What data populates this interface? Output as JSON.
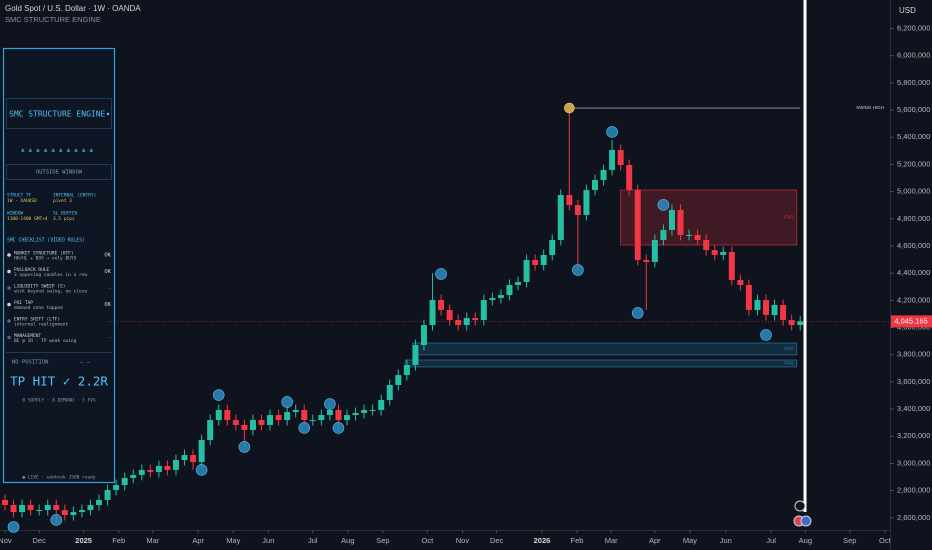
{
  "chart_data": {
    "type": "candlestick",
    "title": "Gold Spot / U.S. Dollar · 1W · OANDA",
    "subtitle": "SMC STRUCTURE ENGINE",
    "currency": "USD",
    "up_color": "#26bfa4",
    "down_color": "#f23645",
    "grid": false,
    "xlim": [
      -0.58,
      103.5
    ],
    "ylim": [
      2510000,
      6410000
    ],
    "xticks": [
      {
        "value": 0,
        "label": "Nov"
      },
      {
        "value": 4.0,
        "label": "Dec"
      },
      {
        "value": 9.2,
        "label": "2025"
      },
      {
        "value": 13.3,
        "label": "Feb"
      },
      {
        "value": 17.3,
        "label": "Mar"
      },
      {
        "value": 22.6,
        "label": "Apr"
      },
      {
        "value": 26.7,
        "label": "May"
      },
      {
        "value": 30.8,
        "label": "Jun"
      },
      {
        "value": 36.0,
        "label": "Jul"
      },
      {
        "value": 40.1,
        "label": "Aug"
      },
      {
        "value": 44.2,
        "label": "Sep"
      },
      {
        "value": 49.4,
        "label": "Oct"
      },
      {
        "value": 53.5,
        "label": "Nov"
      },
      {
        "value": 57.5,
        "label": "Dec"
      },
      {
        "value": 62.8,
        "label": "2026"
      },
      {
        "value": 66.9,
        "label": "Feb"
      },
      {
        "value": 70.9,
        "label": "Mar"
      },
      {
        "value": 76.0,
        "label": "Apr"
      },
      {
        "value": 80.1,
        "label": "May"
      },
      {
        "value": 84.3,
        "label": "Jun"
      },
      {
        "value": 89.6,
        "label": "Jul"
      },
      {
        "value": 93.6,
        "label": "Aug"
      },
      {
        "value": 98.8,
        "label": "Sep"
      },
      {
        "value": 102.9,
        "label": "Oct"
      }
    ],
    "yticks": [
      {
        "value": 2600000,
        "label": "2,600,000"
      },
      {
        "value": 2800000,
        "label": "2,800,000"
      },
      {
        "value": 3000000,
        "label": "3,000,000"
      },
      {
        "value": 3200000,
        "label": "3,200,000"
      },
      {
        "value": 3400000,
        "label": "3,400,000"
      },
      {
        "value": 3600000,
        "label": "3,600,000"
      },
      {
        "value": 3800000,
        "label": "3,800,000"
      },
      {
        "value": 4000000,
        "label": "4,000,000"
      },
      {
        "value": 4200000,
        "label": "4,200,000"
      },
      {
        "value": 4400000,
        "label": "4,400,000"
      },
      {
        "value": 4600000,
        "label": "4,600,000"
      },
      {
        "value": 4800000,
        "label": "4,800,000"
      },
      {
        "value": 5000000,
        "label": "5,000,000"
      },
      {
        "value": 5200000,
        "label": "5,200,000"
      },
      {
        "value": 5400000,
        "label": "5,400,000"
      },
      {
        "value": 5600000,
        "label": "5,600,000"
      },
      {
        "value": 5800000,
        "label": "5,800,000"
      },
      {
        "value": 6000000,
        "label": "6,000,000"
      },
      {
        "value": 6200000,
        "label": "6,200,000"
      }
    ],
    "open": [
      2731000,
      2694000,
      2642000,
      2694000,
      2657000,
      2657000,
      2694000,
      2657000,
      2620000,
      2642000,
      2657000,
      2694000,
      2731000,
      2804000,
      2841000,
      2893000,
      2915000,
      2952000,
      2937000,
      2981000,
      2952000,
      3025000,
      3062000,
      3010000,
      3172000,
      3319000,
      3393000,
      3319000,
      3283000,
      3246000,
      3319000,
      3283000,
      3356000,
      3319000,
      3378000,
      3393000,
      3319000,
      3319000,
      3356000,
      3393000,
      3319000,
      3356000,
      3371000,
      3393000,
      3393000,
      3467000,
      3577000,
      3650000,
      3724000,
      3871000,
      4018000,
      4202000,
      4129000,
      4055000,
      4018000,
      4070000,
      4055000,
      4202000,
      4217000,
      4239000,
      4313000,
      4335000,
      4497000,
      4460000,
      4534000,
      4644000,
      4975000,
      4901000,
      4828000,
      5012000,
      5085000,
      5159000,
      5306000,
      5196000,
      5012000,
      4497000,
      4482000,
      4644000,
      4718000,
      4865000,
      4681000,
      4681000,
      4644000,
      4570000,
      4534000,
      4556000,
      4350000,
      4313000,
      4129000,
      4202000,
      4092000,
      4166000,
      4055000,
      4018000
    ],
    "high": [
      2771000,
      2734000,
      2734000,
      2734000,
      2697000,
      2734000,
      2734000,
      2697000,
      2682000,
      2697000,
      2734000,
      2771000,
      2844000,
      2881000,
      2933000,
      2955000,
      2992000,
      2992000,
      3021000,
      3021000,
      3065000,
      3102000,
      3102000,
      3212000,
      3359000,
      3433000,
      3433000,
      3359000,
      3323000,
      3359000,
      3359000,
      3396000,
      3396000,
      3418000,
      3433000,
      3433000,
      3359000,
      3396000,
      3433000,
      3433000,
      3396000,
      3411000,
      3433000,
      3433000,
      3507000,
      3617000,
      3690000,
      3764000,
      3911000,
      4058000,
      4400000,
      4242000,
      4169000,
      4095000,
      4110000,
      4110000,
      4242000,
      4257000,
      4279000,
      4353000,
      4375000,
      4537000,
      4537000,
      4574000,
      4684000,
      5015000,
      5615000,
      4941000,
      5052000,
      5125000,
      5199000,
      5380000,
      5346000,
      5236000,
      5052000,
      4537000,
      4684000,
      4758000,
      4905000,
      4905000,
      4721000,
      4721000,
      4684000,
      4610000,
      4596000,
      4596000,
      4390000,
      4353000,
      4242000,
      4242000,
      4206000,
      4206000,
      4095000,
      4085000
    ],
    "low": [
      2654000,
      2602000,
      2602000,
      2617000,
      2617000,
      2617000,
      2560000,
      2580000,
      2580000,
      2602000,
      2617000,
      2654000,
      2691000,
      2764000,
      2801000,
      2853000,
      2875000,
      2897000,
      2897000,
      2912000,
      2912000,
      2985000,
      2952000,
      2970000,
      3132000,
      3279000,
      3279000,
      3243000,
      3120000,
      3206000,
      3243000,
      3243000,
      3279000,
      3279000,
      3338000,
      3279000,
      3279000,
      3279000,
      3316000,
      3246000,
      3279000,
      3316000,
      3331000,
      3353000,
      3353000,
      3427000,
      3537000,
      3610000,
      3684000,
      3831000,
      3978000,
      4089000,
      4015000,
      3978000,
      3978000,
      4015000,
      4015000,
      4162000,
      4177000,
      4199000,
      4273000,
      4295000,
      4420000,
      4420000,
      4494000,
      4604000,
      4861000,
      4424000,
      4788000,
      4972000,
      5045000,
      5119000,
      5156000,
      4972000,
      4457000,
      4129000,
      4442000,
      4604000,
      4678000,
      4641000,
      4641000,
      4604000,
      4530000,
      4494000,
      4494000,
      4310000,
      4273000,
      4089000,
      4089000,
      4052000,
      4052000,
      4015000,
      3978000,
      3978000
    ],
    "close": [
      2694000,
      2642000,
      2694000,
      2657000,
      2657000,
      2694000,
      2657000,
      2620000,
      2642000,
      2657000,
      2694000,
      2731000,
      2804000,
      2841000,
      2893000,
      2915000,
      2952000,
      2937000,
      2981000,
      2952000,
      3025000,
      3062000,
      3010000,
      3172000,
      3319000,
      3393000,
      3319000,
      3283000,
      3246000,
      3319000,
      3283000,
      3356000,
      3319000,
      3378000,
      3393000,
      3319000,
      3319000,
      3356000,
      3393000,
      3319000,
      3356000,
      3371000,
      3393000,
      3393000,
      3467000,
      3577000,
      3650000,
      3724000,
      3871000,
      4018000,
      4202000,
      4129000,
      4055000,
      4018000,
      4070000,
      4055000,
      4202000,
      4217000,
      4239000,
      4313000,
      4335000,
      4497000,
      4460000,
      4534000,
      4644000,
      4975000,
      4901000,
      4828000,
      5012000,
      5085000,
      5159000,
      5306000,
      5196000,
      5012000,
      4497000,
      4482000,
      4644000,
      4718000,
      4865000,
      4681000,
      4681000,
      4644000,
      4570000,
      4534000,
      4556000,
      4350000,
      4313000,
      4129000,
      4202000,
      4092000,
      4166000,
      4055000,
      4018000,
      4045165
    ],
    "price_tag": "4,045.165",
    "pivots": {
      "color": "#2a8cc0",
      "index": [
        1,
        6,
        23,
        25,
        28,
        33,
        35,
        38,
        39,
        51,
        67,
        71,
        74,
        77,
        89
      ],
      "price": [
        2532000,
        2584000,
        2952000,
        3503000,
        3121000,
        3452000,
        3261000,
        3437000,
        3261000,
        4394000,
        4423000,
        5439000,
        4107000,
        4902000,
        3945000
      ]
    },
    "swing_high": {
      "label": "SWING HIGH",
      "price": 5615000,
      "start": 66,
      "end": 93,
      "color": "#c9a24a"
    },
    "zones": [
      {
        "label": "FVG",
        "top": 5012000,
        "bottom": 4607000,
        "start": 72,
        "end": 92.6,
        "color": "#f23645"
      },
      {
        "label": "FVG",
        "top": 3886000,
        "bottom": 3798000,
        "start": 47.7,
        "end": 92.6,
        "color": "#2a8cc0"
      },
      {
        "label": "FVG",
        "top": 3761000,
        "bottom": 3710000,
        "start": 46.8,
        "end": 92.6,
        "color": "#2a8cc0"
      }
    ]
  },
  "panel": {
    "title": "SMC STRUCTURE ENGINE",
    "window_status": "OUTSIDE WINDOW",
    "info": [
      {
        "label": "STRUCT TF",
        "value": "1W · XAUUSD"
      },
      {
        "label": "INTERNAL (ENTRY)",
        "value": "pivot 3"
      },
      {
        "label": "WINDOW",
        "value": "1100-1400 GMT+4"
      },
      {
        "label": "SL BUFFER",
        "value": "3.5 pips"
      }
    ],
    "checklist_title": "SMC CHECKLIST (VIDEO RULES)",
    "checklist": [
      {
        "name": "MARKET STRUCTURE (HTF)",
        "detail": "HH/HL + BOS → only BUYS",
        "status": "OK"
      },
      {
        "name": "PULLBACK RULE",
        "detail": "3 opposing candles in a row",
        "status": "OK"
      },
      {
        "name": "LIQUIDITY SWEEP (S)",
        "detail": "wick beyond swing, no close",
        "status": "–"
      },
      {
        "name": "POI TAP",
        "detail": "demand zone tapped",
        "status": "OK"
      },
      {
        "name": "ENTRY SHIFT (LTF)",
        "detail": "internal realignment",
        "status": "–"
      },
      {
        "name": "MANAGEMENT",
        "detail": "BE @ 1R · TP weak swing",
        "status": "–"
      }
    ],
    "position": "NO POSITION",
    "position_detail": "– –",
    "result": "TP HIT ✓ 2.2R",
    "zones_summary": "0 SUPPLY · 8 DEMAND · 3 FVG",
    "footer": "● LIVE · webhook JSON ready"
  }
}
